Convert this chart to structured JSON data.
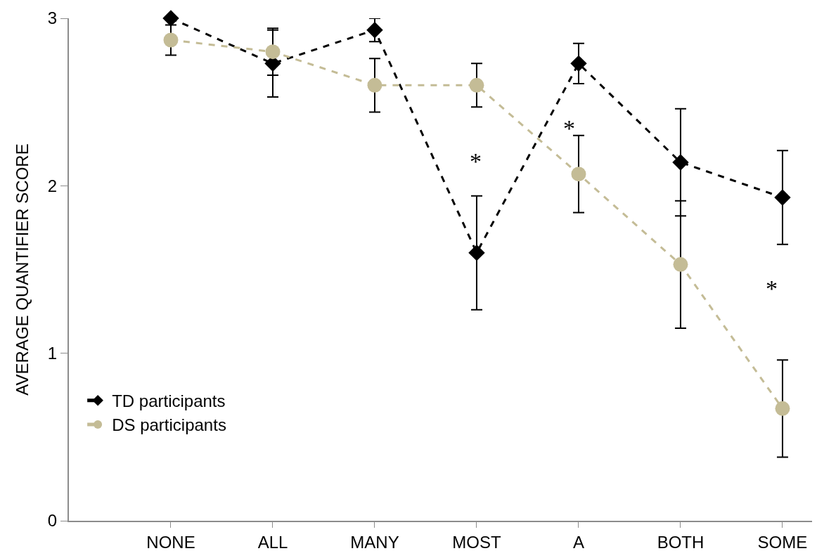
{
  "chart_data": {
    "type": "line",
    "ylabel": "AVERAGE QUANTIFIER SCORE",
    "categories": [
      null,
      "NONE",
      "ALL",
      "MANY",
      "MOST",
      "A",
      "BOTH",
      "SOME"
    ],
    "series": [
      {
        "name": "TD participants",
        "color": "#000000",
        "marker": "diamond",
        "values": [
          null,
          3.0,
          2.73,
          2.93,
          1.6,
          2.73,
          2.14,
          1.93
        ],
        "errors": [
          null,
          null,
          0.2,
          0.07,
          0.34,
          0.12,
          0.32,
          0.28
        ]
      },
      {
        "name": "DS participants",
        "color": "#c4bc96",
        "marker": "circle",
        "values": [
          null,
          2.87,
          2.8,
          2.6,
          2.6,
          2.07,
          1.53,
          0.67
        ],
        "errors": [
          null,
          0.09,
          0.14,
          0.16,
          0.13,
          0.23,
          0.38,
          0.29
        ]
      }
    ],
    "line_style": "dashed",
    "ylim": [
      0,
      3
    ],
    "yticks": [
      0,
      1,
      2,
      3
    ],
    "grid": false,
    "legend": "bottom left",
    "annotations": [
      "*",
      "*",
      "*"
    ]
  }
}
